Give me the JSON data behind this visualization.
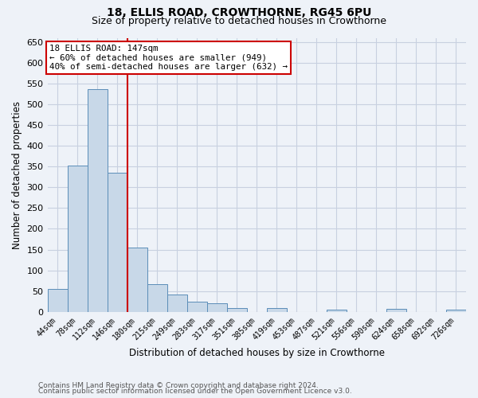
{
  "title1": "18, ELLIS ROAD, CROWTHORNE, RG45 6PU",
  "title2": "Size of property relative to detached houses in Crowthorne",
  "xlabel": "Distribution of detached houses by size in Crowthorne",
  "ylabel": "Number of detached properties",
  "footnote1": "Contains HM Land Registry data © Crown copyright and database right 2024.",
  "footnote2": "Contains public sector information licensed under the Open Government Licence v3.0.",
  "x_labels": [
    "44sqm",
    "78sqm",
    "112sqm",
    "146sqm",
    "180sqm",
    "215sqm",
    "249sqm",
    "283sqm",
    "317sqm",
    "351sqm",
    "385sqm",
    "419sqm",
    "453sqm",
    "487sqm",
    "521sqm",
    "556sqm",
    "590sqm",
    "624sqm",
    "658sqm",
    "692sqm",
    "726sqm"
  ],
  "bar_values": [
    55,
    352,
    537,
    335,
    155,
    67,
    42,
    25,
    20,
    10,
    0,
    10,
    0,
    0,
    5,
    0,
    0,
    7,
    0,
    0,
    6
  ],
  "bar_color": "#c8d8e8",
  "bar_edge_color": "#5b8db8",
  "grid_color": "#c8d0e0",
  "bg_color": "#eef2f8",
  "red_line_x": 3.5,
  "red_line_color": "#cc0000",
  "annotation_line1": "18 ELLIS ROAD: 147sqm",
  "annotation_line2": "← 60% of detached houses are smaller (949)",
  "annotation_line3": "40% of semi-detached houses are larger (632) →",
  "annotation_box_color": "#ffffff",
  "annotation_border_color": "#cc0000",
  "ylim": [
    0,
    660
  ],
  "yticks": [
    0,
    50,
    100,
    150,
    200,
    250,
    300,
    350,
    400,
    450,
    500,
    550,
    600,
    650
  ]
}
